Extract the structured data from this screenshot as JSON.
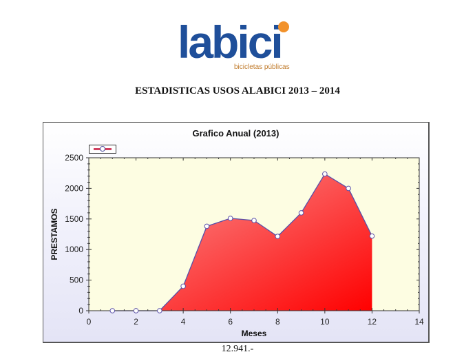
{
  "logo": {
    "word": "labici",
    "tagline": "bicicletas públicas",
    "colors": {
      "word": "#1f4f9a",
      "dot": "#f2922b"
    }
  },
  "document": {
    "title": "ESTADISTICAS USOS ALABICI 2013 – 2014",
    "total_label": "12.941.-"
  },
  "chart_data": {
    "type": "area",
    "title": "Grafico Anual (2013)",
    "xlabel": "Meses",
    "ylabel": "PRESTAMOS",
    "x": [
      1,
      2,
      3,
      4,
      5,
      6,
      7,
      8,
      9,
      10,
      11,
      12
    ],
    "series": [
      {
        "name": "",
        "values": [
          0,
          0,
          0,
          400,
          1380,
          1510,
          1475,
          1215,
          1600,
          2235,
          2000,
          1220
        ]
      }
    ],
    "xlim": [
      0,
      14
    ],
    "ylim": [
      0,
      2500
    ],
    "xticks": [
      0,
      2,
      4,
      6,
      8,
      10,
      12,
      14
    ],
    "yticks": [
      0,
      500,
      1000,
      1500,
      2000,
      2500
    ],
    "grid": false,
    "legend": {
      "position": "top-left",
      "entries": [
        ""
      ]
    },
    "colors": {
      "fill_light": "#f89a9a",
      "fill_dark": "#ff0000",
      "line": "#5a50a8",
      "plot_bg": "#fdfde2",
      "frame_bg": "#e8e8f8"
    }
  }
}
